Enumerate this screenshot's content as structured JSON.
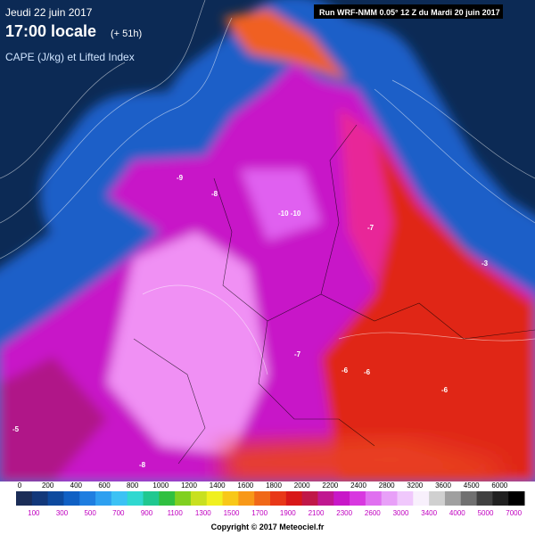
{
  "header": {
    "date": "Jeudi 22 juin 2017",
    "time": "17:00 locale",
    "offset": "(+ 51h)",
    "field": "CAPE (J/kg) et Lifted Index",
    "run": "Run WRF-NMM 0.05° 12 Z du Mardi 20 juin 2017"
  },
  "map": {
    "labels": [
      "-9",
      "-10 -10",
      "-7",
      "-8",
      "-6",
      "-6",
      "-3",
      "-5",
      "-7",
      "-6",
      "-8"
    ]
  },
  "colorbar": {
    "top_labels": [
      "0",
      "200",
      "400",
      "600",
      "800",
      "1000",
      "1200",
      "1400",
      "1600",
      "1800",
      "2000",
      "2200",
      "2400",
      "2800",
      "3200",
      "3600",
      "4500",
      "6000"
    ],
    "bottom_labels": [
      "100",
      "300",
      "500",
      "700",
      "900",
      "1100",
      "1300",
      "1500",
      "1700",
      "1900",
      "2100",
      "2300",
      "2600",
      "3000",
      "3400",
      "4000",
      "5000",
      "7000"
    ],
    "colors": [
      "#1b2d57",
      "#12387a",
      "#0d4a9e",
      "#1060c4",
      "#1f7ee0",
      "#2ea0f0",
      "#3cc2f4",
      "#30d8d0",
      "#20c890",
      "#30c040",
      "#80d020",
      "#c8e020",
      "#f0f020",
      "#f8c818",
      "#f89818",
      "#f06818",
      "#e83818",
      "#d81818",
      "#c01848",
      "#c01890",
      "#c818c8",
      "#d838e0",
      "#e070f0",
      "#e8a0f8",
      "#f0c8fc",
      "#f8f0fc",
      "#d0d0d0",
      "#a0a0a0",
      "#707070",
      "#404040",
      "#202020",
      "#000000"
    ]
  },
  "footer": {
    "copyright": "Copyright © 2017 Meteociel.fr"
  }
}
